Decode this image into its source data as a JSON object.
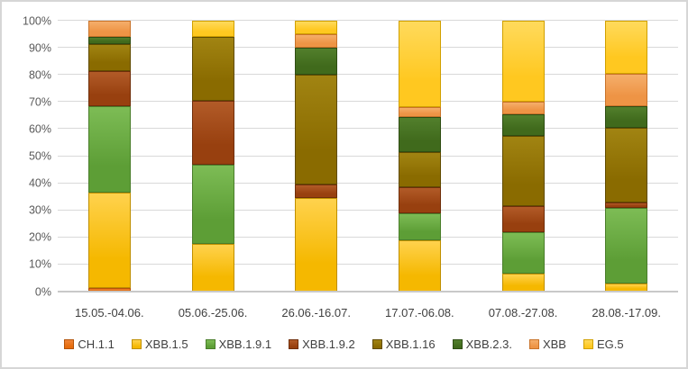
{
  "chart_data": {
    "type": "bar",
    "subtype": "stacked-100-percent-column",
    "title": "",
    "xlabel": "",
    "ylabel": "",
    "ylim": [
      0,
      100
    ],
    "grid": true,
    "legend_position": "bottom",
    "y_ticks": [
      "0%",
      "10%",
      "20%",
      "30%",
      "40%",
      "50%",
      "60%",
      "70%",
      "80%",
      "90%",
      "100%"
    ],
    "categories": [
      "15.05.-04.06.",
      "05.06.-25.06.",
      "26.06.-16.07.",
      "17.07.-06.08.",
      "07.08.-27.08.",
      "28.08.-17.09."
    ],
    "series": [
      {
        "name": "CH.1.1",
        "color": "#E66C0C",
        "color_light": "#F08438",
        "border": "#B35309",
        "values": [
          1.5,
          0,
          0,
          0,
          0,
          0
        ]
      },
      {
        "name": "XBB.1.5",
        "color": "#F5B800",
        "color_light": "#FFD24D",
        "border": "#BF8F00",
        "values": [
          35,
          17.5,
          34.5,
          19,
          6.5,
          3
        ]
      },
      {
        "name": "XBB.1.9.1",
        "color": "#5D9E36",
        "color_light": "#7DBC55",
        "border": "#4A7E2B",
        "values": [
          32,
          29.5,
          0,
          10,
          15.5,
          28
        ]
      },
      {
        "name": "XBB.1.9.2",
        "color": "#98400F",
        "color_light": "#B25B28",
        "border": "#6F2E0A",
        "values": [
          13,
          23.5,
          5,
          9.5,
          9.5,
          2
        ]
      },
      {
        "name": "XBB.1.16",
        "color": "#8A6B00",
        "color_light": "#A18412",
        "border": "#604B00",
        "values": [
          10,
          23.5,
          40.5,
          13,
          26,
          27.5
        ]
      },
      {
        "name": "XBB.2.3.",
        "color": "#406A1C",
        "color_light": "#527F2C",
        "border": "#2E4D13",
        "values": [
          2.5,
          0,
          10,
          13,
          8,
          8
        ]
      },
      {
        "name": "XBB",
        "color": "#EE9445",
        "color_light": "#F5AE6B",
        "border": "#C9732A",
        "values": [
          6,
          0,
          5,
          3.5,
          4.5,
          12
        ]
      },
      {
        "name": "EG.5",
        "color": "#FFC820",
        "color_light": "#FFDA5C",
        "border": "#D1A000",
        "values": [
          0,
          6,
          5,
          32,
          30,
          19.5
        ]
      }
    ],
    "style_colors": {
      "gridline": "#d9d9d9",
      "axis_line": "#c9c9c9",
      "y_tick_text": "#595959",
      "x_tick_text": "#3f3f3f",
      "legend_text": "#3f3f3f",
      "frame_border": "#d6d6d6",
      "background": "#ffffff"
    }
  }
}
